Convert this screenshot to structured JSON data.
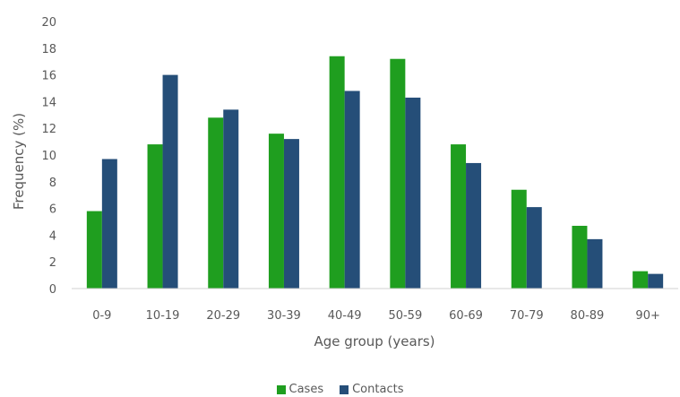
{
  "chart_data": {
    "type": "bar",
    "title": "",
    "xlabel": "Age group (years)",
    "ylabel": "Frequency (%)",
    "ylim": [
      0,
      20
    ],
    "yticks": [
      0,
      2,
      4,
      6,
      8,
      10,
      12,
      14,
      16,
      18,
      20
    ],
    "grid": false,
    "legend_position": "bottom",
    "categories": [
      "0-9",
      "10-19",
      "20-29",
      "30-39",
      "40-49",
      "50-59",
      "60-69",
      "70-79",
      "80-89",
      "90+"
    ],
    "series": [
      {
        "name": "Cases",
        "color": "#1f9e1f",
        "values": [
          5.8,
          10.8,
          12.8,
          11.6,
          17.4,
          17.2,
          10.8,
          7.4,
          4.7,
          1.3
        ]
      },
      {
        "name": "Contacts",
        "color": "#254e78",
        "values": [
          9.7,
          16.0,
          13.4,
          11.2,
          14.8,
          14.3,
          9.4,
          6.1,
          3.7,
          1.1
        ]
      }
    ]
  }
}
